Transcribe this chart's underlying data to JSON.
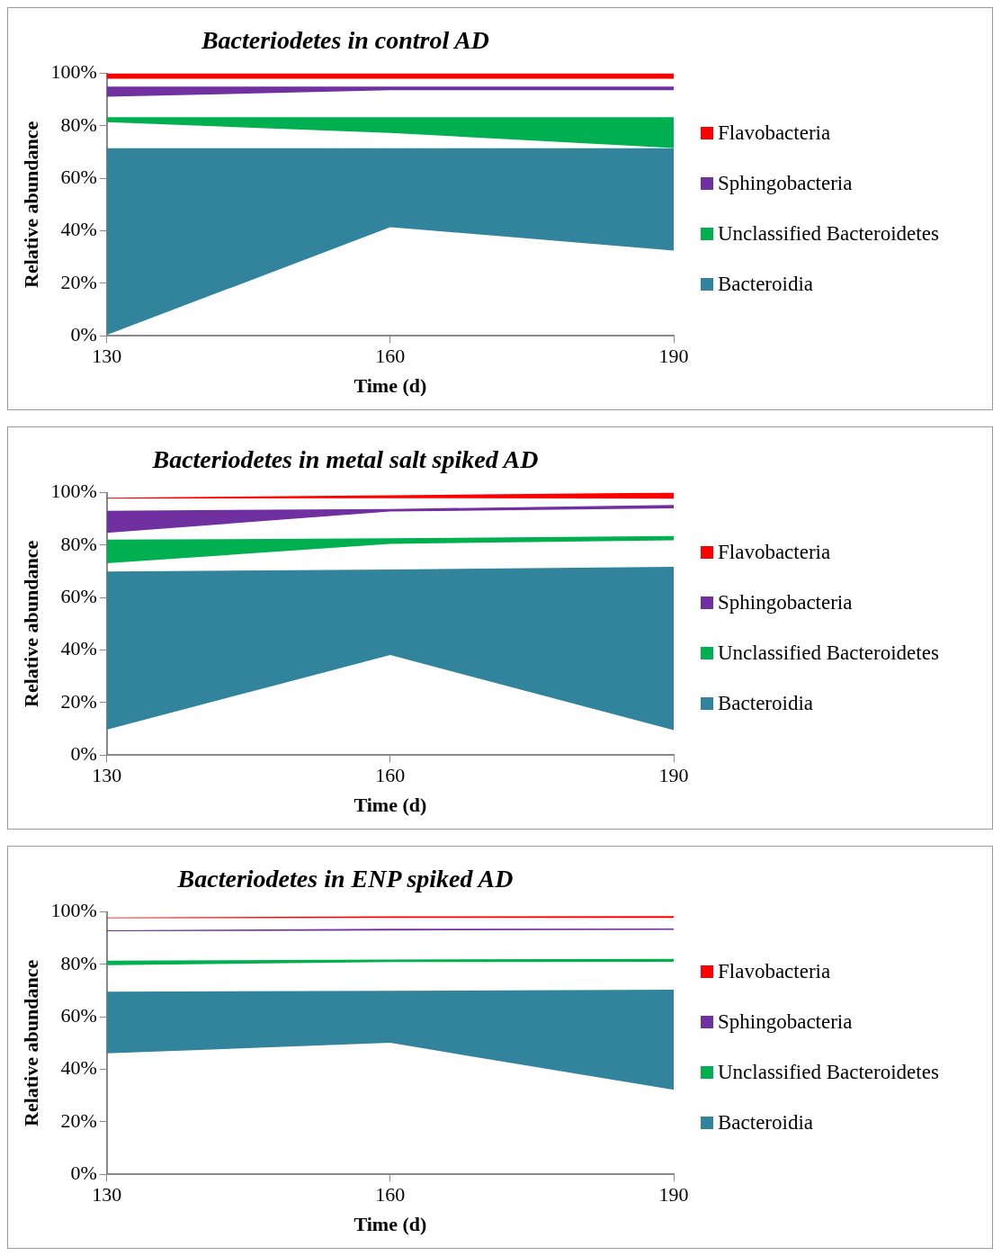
{
  "chart_data": [
    {
      "type": "area",
      "title": "Bacteriodetes in control AD",
      "xlabel": "Time (d)",
      "ylabel": "Relative abundance",
      "x": [
        130,
        160,
        190
      ],
      "xlim": [
        130,
        190
      ],
      "xticks": [
        130,
        160,
        190
      ],
      "ylim": [
        0,
        100
      ],
      "yticks": [
        {
          "value": 0,
          "label": "0%"
        },
        {
          "value": 20,
          "label": "20%"
        },
        {
          "value": 40,
          "label": "40%"
        },
        {
          "value": 60,
          "label": "60%"
        },
        {
          "value": 80,
          "label": "80%"
        },
        {
          "value": 100,
          "label": "100%"
        }
      ],
      "legend": "right",
      "series": [
        {
          "name": "Flavobacteria",
          "color": "#ff0000",
          "values": [
            null,
            null,
            null
          ],
          "upper": [
            100,
            100,
            100
          ],
          "lower": [
            98,
            98,
            98
          ]
        },
        {
          "name": "Sphingobacteria",
          "color": "#7030a0",
          "values": [
            null,
            null,
            null
          ],
          "upper": [
            95,
            95,
            95
          ],
          "lower": [
            91.1,
            93.6,
            93.6
          ]
        },
        {
          "name": "Unclassified Bacteroidetes",
          "color": "#00b050",
          "values": [
            null,
            null,
            null
          ],
          "upper": [
            83.3,
            83.3,
            83.3
          ],
          "lower": [
            81.4,
            77.3,
            71.6
          ]
        },
        {
          "name": "Bacteroidia",
          "color": "#31849b",
          "values": [
            null,
            null,
            null
          ],
          "upper": [
            71.5,
            71.5,
            71.5
          ],
          "lower": [
            0.3,
            41.4,
            32.5
          ]
        }
      ]
    },
    {
      "type": "area",
      "title": "Bacteriodetes in metal salt spiked AD",
      "xlabel": "Time (d)",
      "ylabel": "Relative abundance",
      "x": [
        130,
        160,
        190
      ],
      "xlim": [
        130,
        190
      ],
      "xticks": [
        130,
        160,
        190
      ],
      "ylim": [
        0,
        100
      ],
      "yticks": [
        {
          "value": 0,
          "label": "0%"
        },
        {
          "value": 20,
          "label": "20%"
        },
        {
          "value": 40,
          "label": "40%"
        },
        {
          "value": 60,
          "label": "60%"
        },
        {
          "value": 80,
          "label": "80%"
        },
        {
          "value": 100,
          "label": "100%"
        }
      ],
      "legend": "right",
      "series": [
        {
          "name": "Flavobacteria",
          "color": "#ff0000",
          "values": [
            null,
            null,
            null
          ],
          "upper": [
            98.1,
            99,
            100
          ],
          "lower": [
            97.7,
            97.9,
            97.7
          ]
        },
        {
          "name": "Sphingobacteria",
          "color": "#7030a0",
          "values": [
            null,
            null,
            null
          ],
          "upper": [
            93.1,
            93.8,
            95.3
          ],
          "lower": [
            84.7,
            92.8,
            94
          ]
        },
        {
          "name": "Unclassified Bacteroidetes",
          "color": "#00b050",
          "values": [
            null,
            null,
            null
          ],
          "upper": [
            82.1,
            82.6,
            83.5
          ],
          "lower": [
            73.1,
            80.5,
            81.9
          ]
        },
        {
          "name": "Bacteroidia",
          "color": "#31849b",
          "values": [
            null,
            null,
            null
          ],
          "upper": [
            69.9,
            70.7,
            71.7
          ],
          "lower": [
            9.7,
            38.1,
            9.5
          ]
        }
      ]
    },
    {
      "type": "area",
      "title": "Bacteriodetes in ENP spiked AD",
      "xlabel": "Time (d)",
      "ylabel": "Relative abundance",
      "x": [
        130,
        160,
        190
      ],
      "xlim": [
        130,
        190
      ],
      "xticks": [
        130,
        160,
        190
      ],
      "ylim": [
        0,
        100
      ],
      "yticks": [
        {
          "value": 0,
          "label": "0%"
        },
        {
          "value": 20,
          "label": "20%"
        },
        {
          "value": 40,
          "label": "40%"
        },
        {
          "value": 60,
          "label": "60%"
        },
        {
          "value": 80,
          "label": "80%"
        },
        {
          "value": 100,
          "label": "100%"
        }
      ],
      "legend": "right",
      "series": [
        {
          "name": "Flavobacteria",
          "color": "#ff0000",
          "values": [
            null,
            null,
            null
          ],
          "upper": [
            97.9,
            98.3,
            98.4
          ],
          "lower": [
            97.6,
            97.7,
            97.7
          ]
        },
        {
          "name": "Sphingobacteria",
          "color": "#7030a0",
          "values": [
            null,
            null,
            null
          ],
          "upper": [
            93,
            93.6,
            93.7
          ],
          "lower": [
            92.7,
            92.9,
            93.2
          ]
        },
        {
          "name": "Unclassified Bacteroidetes",
          "color": "#00b050",
          "values": [
            null,
            null,
            null
          ],
          "upper": [
            81.4,
            81.9,
            82.1
          ],
          "lower": [
            79.7,
            80.9,
            81
          ]
        },
        {
          "name": "Bacteroidia",
          "color": "#31849b",
          "values": [
            null,
            null,
            null
          ],
          "upper": [
            69.6,
            69.9,
            70.4
          ],
          "lower": [
            46.1,
            50.1,
            32.2
          ]
        }
      ]
    }
  ]
}
